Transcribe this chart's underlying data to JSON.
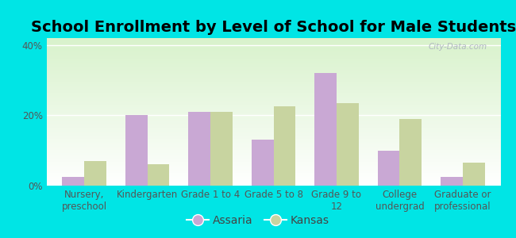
{
  "title": "School Enrollment by Level of School for Male Students",
  "categories": [
    "Nursery,\npreschool",
    "Kindergarten",
    "Grade 1 to 4",
    "Grade 5 to 8",
    "Grade 9 to\n12",
    "College\nundergrad",
    "Graduate or\nprofessional"
  ],
  "assaria": [
    2.5,
    20.0,
    21.0,
    13.0,
    32.0,
    10.0,
    2.5
  ],
  "kansas": [
    7.0,
    6.0,
    21.0,
    22.5,
    23.5,
    19.0,
    6.5
  ],
  "assaria_color": "#c9a8d4",
  "kansas_color": "#c8d4a0",
  "background_color": "#00e5e5",
  "ylabel_ticks": [
    "0%",
    "20%",
    "40%"
  ],
  "ytick_values": [
    0,
    20,
    40
  ],
  "ylim": [
    0,
    42
  ],
  "bar_width": 0.35,
  "legend_assaria": "Assaria",
  "legend_kansas": "Kansas",
  "title_fontsize": 14,
  "tick_fontsize": 8.5,
  "legend_fontsize": 10,
  "watermark": "City-Data.com"
}
